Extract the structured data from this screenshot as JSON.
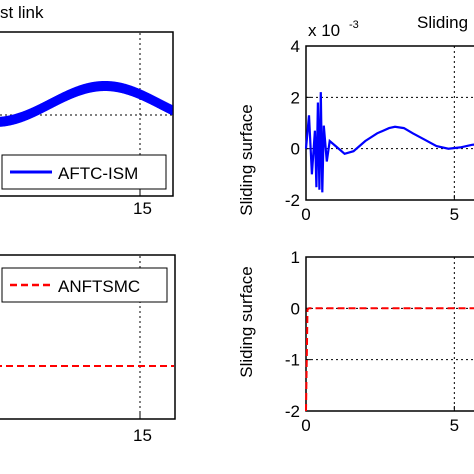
{
  "chart_data": [
    {
      "type": "line",
      "title": "st link",
      "x_tick_labels": [
        "15"
      ],
      "series": [
        {
          "name": "AFTC-ISM",
          "color": "#0000ff",
          "style": "solid"
        }
      ],
      "legend": "bottom-right"
    },
    {
      "type": "line",
      "title": "Sliding",
      "ylabel": "Sliding surface",
      "y_multiplier": "x 10",
      "y_exponent": "-3",
      "xlim": [
        0,
        6
      ],
      "ylim": [
        -2,
        4
      ],
      "x_tick_labels": [
        "0",
        "5"
      ],
      "y_tick_labels": [
        "4",
        "2",
        "0",
        "-2"
      ],
      "series": [
        {
          "color": "#0000ff",
          "style": "solid",
          "x": [
            0.0,
            0.1,
            0.2,
            0.3,
            0.35,
            0.4,
            0.45,
            0.5,
            0.55,
            0.6,
            0.7,
            0.8,
            1.0,
            1.3,
            1.6,
            2.0,
            2.4,
            2.8,
            3.0,
            3.3,
            3.6,
            4.0,
            4.4,
            4.8,
            5.2,
            5.6,
            6.0
          ],
          "y": [
            0.0,
            1.3,
            -1.0,
            0.7,
            -1.5,
            1.8,
            -1.6,
            2.2,
            -1.7,
            0.9,
            -0.5,
            0.3,
            0.1,
            -0.2,
            -0.1,
            0.3,
            0.6,
            0.8,
            0.85,
            0.8,
            0.6,
            0.35,
            0.1,
            0.0,
            0.05,
            0.15,
            0.2
          ]
        }
      ],
      "grid": true
    },
    {
      "type": "line",
      "x_tick_labels": [
        "15"
      ],
      "series": [
        {
          "name": "ANFTSMC",
          "color": "#ff0000",
          "style": "dashed"
        }
      ],
      "legend": "top-right"
    },
    {
      "type": "line",
      "ylabel": "Sliding surface",
      "xlim": [
        0,
        6
      ],
      "ylim": [
        -2,
        1
      ],
      "x_tick_labels": [
        "0",
        "5"
      ],
      "y_tick_labels": [
        "1",
        "0",
        "-1",
        "-2"
      ],
      "series": [
        {
          "color": "#ff0000",
          "style": "dashed",
          "x": [
            0.0,
            0.05,
            0.1,
            6.0
          ],
          "y": [
            -2.0,
            -0.02,
            0.0,
            0.0
          ]
        }
      ],
      "grid": true
    }
  ]
}
